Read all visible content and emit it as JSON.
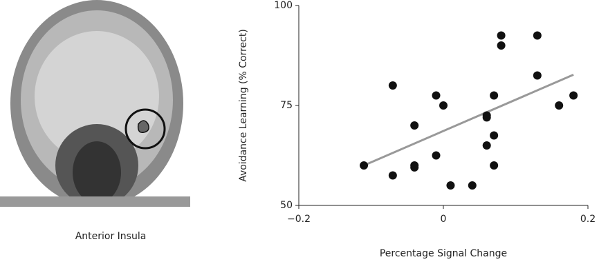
{
  "image_caption": "Anterior Insula",
  "chart_data": {
    "type": "scatter",
    "x_label": "Percentage Signal Change",
    "y_label": "Avoidance Learning (% Correct)",
    "xlim": [
      -0.2,
      0.2
    ],
    "ylim": [
      50,
      100
    ],
    "xticks": [
      {
        "value": -0.2,
        "label": "−0.2"
      },
      0,
      0.2
    ],
    "yticks": [
      50,
      75,
      100
    ],
    "color": "#111111",
    "x": [
      -0.11,
      -0.07,
      -0.07,
      -0.04,
      -0.04,
      -0.04,
      -0.01,
      -0.01,
      0,
      0.01,
      0.04,
      0.06,
      0.06,
      0.06,
      0.07,
      0.07,
      0.07,
      0.08,
      0.08,
      0.13,
      0.13,
      0.16,
      0.18
    ],
    "values": [
      60,
      57.5,
      80,
      70,
      60,
      59.5,
      77.5,
      62.5,
      75,
      55,
      55,
      72.5,
      72,
      65,
      77.5,
      67.5,
      60,
      92.5,
      90,
      92.5,
      82.5,
      75,
      77.5
    ],
    "trendline": {
      "color": "#999999",
      "x": [
        -0.11,
        0.18
      ],
      "y": [
        60,
        82.7
      ]
    }
  }
}
